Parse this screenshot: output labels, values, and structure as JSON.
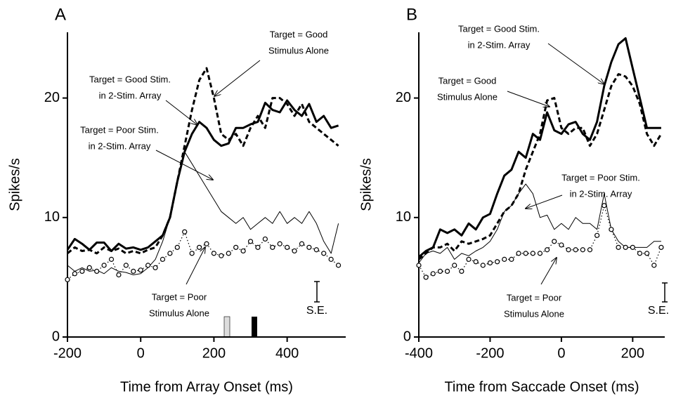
{
  "chart_data": [
    {
      "type": "line",
      "panel": "A",
      "x_label": "Time from Array Onset (ms)",
      "y_label": "Spikes/s",
      "xlim": [
        -200,
        560
      ],
      "xticks": [
        -200,
        0,
        200,
        400
      ],
      "ylim": [
        0,
        25.5
      ],
      "yticks": [
        0,
        10,
        20
      ],
      "x": [
        -200,
        -180,
        -160,
        -140,
        -120,
        -100,
        -80,
        -60,
        -40,
        -20,
        0,
        20,
        40,
        60,
        80,
        100,
        120,
        140,
        160,
        180,
        200,
        220,
        240,
        260,
        280,
        300,
        320,
        340,
        360,
        380,
        400,
        420,
        440,
        460,
        480,
        500,
        520,
        540
      ],
      "series": [
        {
          "style": "thick",
          "color": "#000000",
          "markers": false,
          "values": [
            7.3,
            8.2,
            7.8,
            7.3,
            7.9,
            7.9,
            7.2,
            7.8,
            7.4,
            7.5,
            7.3,
            7.5,
            8,
            8.5,
            10,
            13,
            15.5,
            17,
            18,
            17.5,
            16.5,
            16,
            16.2,
            17.5,
            17.5,
            17.8,
            18,
            19.6,
            19,
            18.8,
            19.8,
            19,
            18.5,
            19.5,
            18,
            18.5,
            17.5,
            17.7
          ]
        },
        {
          "style": "dashed",
          "color": "#000000",
          "markers": false,
          "values": [
            7,
            7.5,
            7.2,
            7.3,
            7,
            7.5,
            7.2,
            7.4,
            7,
            7.2,
            7,
            7.3,
            7.5,
            8.5,
            10,
            13,
            16,
            19,
            21.5,
            22.5,
            20,
            17,
            16.5,
            17,
            16,
            17.5,
            18.5,
            17.5,
            20,
            20,
            19.5,
            18.5,
            19.5,
            18,
            17.5,
            17,
            16.5,
            16
          ]
        },
        {
          "style": "thin",
          "color": "#000000",
          "markers": false,
          "values": [
            6,
            5.5,
            5.8,
            5.5,
            5.6,
            5.3,
            5.8,
            5.5,
            5.4,
            5.2,
            5.3,
            5.8,
            6.5,
            8,
            10,
            13,
            15.5,
            14.5,
            13.5,
            12.5,
            11.5,
            10.5,
            10,
            9.5,
            10,
            9,
            9.5,
            10,
            9.5,
            10.5,
            9.5,
            10,
            9.5,
            10.5,
            9.5,
            8,
            7,
            9.5
          ]
        },
        {
          "style": "dotted",
          "color": "#000000",
          "markers": true,
          "values": [
            4.8,
            5.3,
            5.5,
            5.8,
            5.5,
            6,
            6.5,
            5.2,
            6,
            5.5,
            5.6,
            6,
            5.8,
            6.5,
            7,
            7.5,
            8.8,
            7,
            7.5,
            7.8,
            7,
            6.8,
            7,
            7.5,
            7.2,
            8,
            7.5,
            8.2,
            7.5,
            7.8,
            7.5,
            7.2,
            7.8,
            7.5,
            7.3,
            7,
            6.5,
            6
          ]
        }
      ],
      "annotations": [
        {
          "lines": [
            "Target = Good",
            "Stimulus Alone"
          ]
        },
        {
          "lines": [
            "Target = Good Stim.",
            "in 2-Stim. Array"
          ]
        },
        {
          "lines": [
            "Target = Poor Stim.",
            "in 2-Stim. Array"
          ]
        },
        {
          "lines": [
            "Target = Poor",
            "Stimulus Alone"
          ]
        },
        {
          "lines": [
            "S.E."
          ]
        }
      ]
    },
    {
      "type": "line",
      "panel": "B",
      "x_label": "Time from Saccade Onset (ms)",
      "y_label": "Spikes/s",
      "xlim": [
        -400,
        290
      ],
      "xticks": [
        -400,
        -200,
        0,
        200
      ],
      "ylim": [
        0,
        25.5
      ],
      "yticks": [
        0,
        10,
        20
      ],
      "x": [
        -400,
        -380,
        -360,
        -340,
        -320,
        -300,
        -280,
        -260,
        -240,
        -220,
        -200,
        -180,
        -160,
        -140,
        -120,
        -100,
        -80,
        -60,
        -40,
        -20,
        0,
        20,
        40,
        60,
        80,
        100,
        120,
        140,
        160,
        180,
        200,
        220,
        240,
        260,
        280
      ],
      "series": [
        {
          "style": "thick",
          "color": "#000000",
          "markers": false,
          "values": [
            6.7,
            7.2,
            7.5,
            9,
            8.7,
            9,
            8.5,
            9.5,
            9,
            10,
            10.3,
            12,
            13.5,
            14,
            15.5,
            15,
            17,
            16.5,
            18.8,
            17.3,
            17,
            17.8,
            18,
            17,
            16.5,
            18,
            21,
            23,
            24.5,
            25,
            22.5,
            20,
            17.5,
            17.5,
            17.5
          ]
        },
        {
          "style": "dashed",
          "color": "#000000",
          "markers": false,
          "values": [
            6.5,
            7,
            7.5,
            7.5,
            7.8,
            7.2,
            8,
            7.8,
            8,
            8.2,
            8.5,
            9.5,
            10.5,
            11,
            12,
            14,
            15.5,
            17,
            19.8,
            20,
            17.5,
            17,
            17.5,
            17.5,
            16,
            17,
            19,
            21,
            22,
            21.8,
            21,
            19.5,
            17,
            16,
            17
          ]
        },
        {
          "style": "thin",
          "color": "#000000",
          "markers": false,
          "values": [
            6.2,
            7,
            7.2,
            7,
            7.5,
            6.5,
            7,
            6.8,
            7.2,
            7.5,
            8,
            9,
            10.5,
            11,
            12,
            12.8,
            12,
            10,
            10.2,
            9,
            9.5,
            9,
            10,
            9.5,
            9.5,
            9,
            12,
            9,
            8,
            7.5,
            7.5,
            7.5,
            7.5,
            8,
            8
          ]
        },
        {
          "style": "dotted",
          "color": "#000000",
          "markers": true,
          "values": [
            6,
            5,
            5.3,
            5.5,
            5.5,
            6,
            5.5,
            6.5,
            6.3,
            6,
            6.2,
            6.3,
            6.5,
            6.5,
            7,
            7,
            7,
            7,
            7.3,
            8,
            7.7,
            7.3,
            7.3,
            7.3,
            7.3,
            8.5,
            11,
            9,
            7.5,
            7.5,
            7.5,
            7,
            7,
            6,
            7.5
          ]
        }
      ],
      "annotations": [
        {
          "lines": [
            "Target = Good Stim.",
            "in 2-Stim. Array"
          ]
        },
        {
          "lines": [
            "Target = Good",
            "Stimulus Alone"
          ]
        },
        {
          "lines": [
            "Target = Poor Stim.",
            "in 2-Stim. Array"
          ]
        },
        {
          "lines": [
            "Target = Poor",
            "Stimulus Alone"
          ]
        },
        {
          "lines": [
            "S.E."
          ]
        }
      ]
    }
  ]
}
